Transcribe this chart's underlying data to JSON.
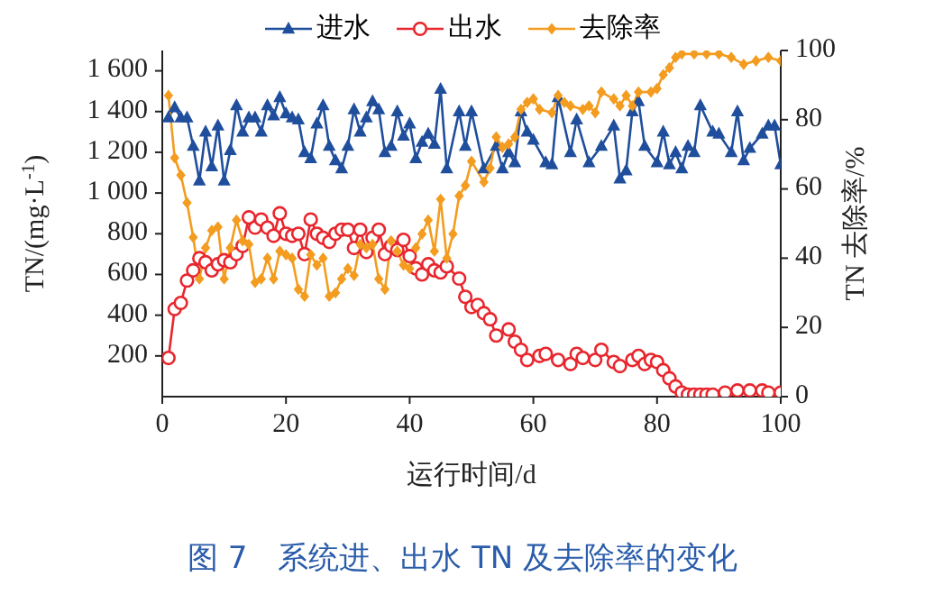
{
  "chart_data": {
    "type": "line",
    "title": "图 7　系统进、出水 TN 及去除率的变化",
    "xlabel": "运行时间/d",
    "ylabel": "TN/(mg·L$^{-1}$)",
    "y2label": "TN 去除率/%",
    "xlim": [
      0,
      100
    ],
    "xticks": [
      0,
      20,
      40,
      60,
      80,
      100
    ],
    "ylim": [
      0,
      1700
    ],
    "yticks": [
      {
        "value": 200,
        "label": "200"
      },
      {
        "value": 400,
        "label": "400"
      },
      {
        "value": 600,
        "label": "600"
      },
      {
        "value": 800,
        "label": "800"
      },
      {
        "value": 1000,
        "label": "1 000"
      },
      {
        "value": 1200,
        "label": "1 200"
      },
      {
        "value": 1400,
        "label": "1 400"
      },
      {
        "value": 1600,
        "label": "1 600"
      }
    ],
    "y2lim": [
      0,
      100
    ],
    "y2ticks": [
      0,
      20,
      40,
      60,
      80,
      100
    ],
    "grid": false,
    "legend": "top",
    "line_style": "solid",
    "series": [
      {
        "name": "进水",
        "color": "#1f4e9c",
        "marker": "triangle",
        "x": [
          1,
          2,
          3,
          4,
          5,
          6,
          7,
          8,
          9,
          10,
          11,
          12,
          13,
          14,
          15,
          16,
          17,
          18,
          19,
          20,
          21,
          22,
          23,
          24,
          25,
          26,
          27,
          28,
          29,
          30,
          31,
          32,
          33,
          34,
          35,
          36,
          37,
          38,
          39,
          40,
          41,
          42,
          43,
          44,
          45,
          46,
          48,
          49,
          50,
          52,
          54,
          55,
          56,
          57,
          58,
          59,
          60,
          62,
          63,
          64,
          66,
          67,
          69,
          71,
          73,
          74,
          75,
          76,
          77,
          78,
          80,
          81,
          82,
          83,
          84,
          85,
          86,
          87,
          89,
          90,
          92,
          93,
          94,
          95,
          97,
          98,
          99,
          100
        ],
        "values": [
          1370,
          1420,
          1370,
          1370,
          1230,
          1060,
          1300,
          1130,
          1330,
          1060,
          1210,
          1430,
          1300,
          1370,
          1370,
          1300,
          1430,
          1380,
          1470,
          1390,
          1370,
          1360,
          1200,
          1170,
          1340,
          1430,
          1230,
          1160,
          1120,
          1230,
          1410,
          1300,
          1370,
          1450,
          1410,
          1200,
          1230,
          1400,
          1280,
          1340,
          1170,
          1250,
          1290,
          1240,
          1510,
          1120,
          1400,
          1230,
          1400,
          1120,
          1230,
          1120,
          1200,
          1150,
          1400,
          1300,
          1260,
          1150,
          1140,
          1470,
          1200,
          1360,
          1150,
          1230,
          1330,
          1070,
          1110,
          1400,
          1450,
          1230,
          1150,
          1300,
          1140,
          1200,
          1120,
          1230,
          1200,
          1430,
          1300,
          1290,
          1200,
          1400,
          1160,
          1220,
          1290,
          1330,
          1330,
          1140
        ]
      },
      {
        "name": "出水",
        "color": "#e8262d",
        "marker": "circle",
        "x": [
          1,
          2,
          3,
          4,
          5,
          6,
          7,
          8,
          9,
          10,
          11,
          12,
          13,
          14,
          15,
          16,
          17,
          18,
          19,
          20,
          21,
          22,
          23,
          24,
          25,
          26,
          27,
          28,
          29,
          30,
          31,
          32,
          33,
          34,
          35,
          36,
          37,
          38,
          39,
          40,
          41,
          42,
          43,
          44,
          45,
          46,
          48,
          49,
          50,
          51,
          52,
          53,
          54,
          56,
          57,
          58,
          59,
          61,
          62,
          64,
          66,
          67,
          68,
          70,
          71,
          73,
          74,
          76,
          77,
          78,
          79,
          80,
          81,
          82,
          83,
          84,
          85,
          86,
          87,
          88,
          89,
          91,
          93,
          95,
          97,
          98,
          100
        ],
        "values": [
          190,
          430,
          460,
          570,
          620,
          680,
          660,
          620,
          650,
          670,
          660,
          700,
          740,
          880,
          830,
          870,
          830,
          790,
          900,
          800,
          790,
          800,
          700,
          870,
          800,
          780,
          760,
          800,
          820,
          820,
          730,
          820,
          710,
          780,
          820,
          700,
          740,
          720,
          770,
          690,
          630,
          600,
          650,
          620,
          610,
          640,
          580,
          490,
          440,
          450,
          410,
          380,
          300,
          330,
          270,
          230,
          180,
          200,
          210,
          180,
          160,
          210,
          190,
          180,
          230,
          170,
          150,
          180,
          200,
          160,
          180,
          170,
          130,
          90,
          50,
          20,
          10,
          10,
          10,
          10,
          10,
          20,
          30,
          30,
          30,
          20,
          20
        ]
      },
      {
        "name": "去除率",
        "color": "#f39c1f",
        "marker": "diamond",
        "axis": "y2",
        "x": [
          1,
          2,
          3,
          4,
          5,
          6,
          7,
          8,
          9,
          10,
          11,
          12,
          13,
          14,
          15,
          16,
          17,
          18,
          19,
          20,
          21,
          22,
          23,
          24,
          25,
          26,
          27,
          28,
          29,
          30,
          31,
          32,
          33,
          34,
          35,
          36,
          37,
          38,
          39,
          40,
          41,
          42,
          43,
          44,
          45,
          46,
          47,
          48,
          49,
          50,
          52,
          53,
          54,
          55,
          56,
          57,
          58,
          59,
          60,
          61,
          63,
          64,
          65,
          66,
          68,
          69,
          70,
          71,
          73,
          74,
          75,
          76,
          77,
          79,
          80,
          81,
          82,
          83,
          84,
          86,
          88,
          90,
          92,
          94,
          96,
          98,
          100
        ],
        "values": [
          87,
          69,
          64,
          56,
          46,
          34,
          43,
          48,
          49,
          34,
          43,
          51,
          45,
          44,
          33,
          34,
          40,
          34,
          42,
          41,
          40,
          31,
          29,
          41,
          38,
          40,
          29,
          30,
          34,
          37,
          35,
          44,
          43,
          44,
          34,
          31,
          45,
          42,
          38,
          37,
          43,
          47,
          51,
          42,
          57,
          40,
          47,
          58,
          61,
          68,
          62,
          66,
          75,
          72,
          73,
          75,
          83,
          85,
          86,
          83,
          82,
          87,
          85,
          84,
          83,
          84,
          82,
          88,
          86,
          84,
          87,
          84,
          88,
          88,
          89,
          93,
          95,
          98,
          99,
          99,
          99,
          99,
          98,
          96,
          97,
          98,
          97
        ]
      }
    ]
  }
}
